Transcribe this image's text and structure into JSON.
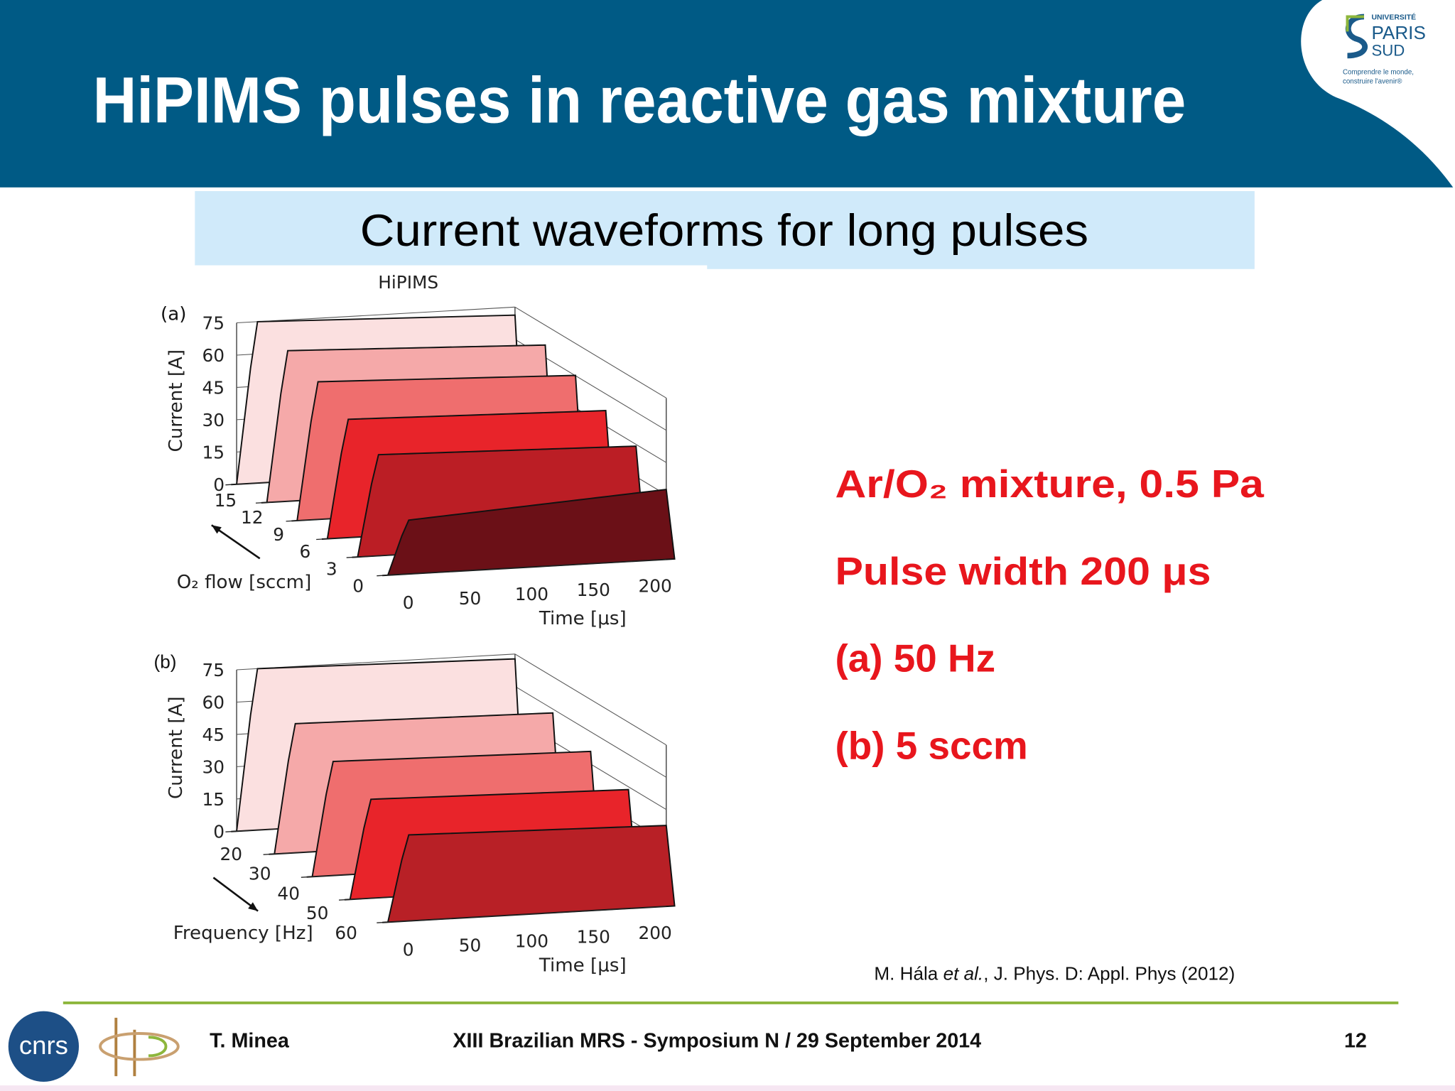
{
  "header": {
    "title": "HiPIMS pulses in reactive gas mixture",
    "subtitle": "Current waveforms for long pulses"
  },
  "logo": {
    "top": "UNIVERSITÉ",
    "name1": "PARIS",
    "name2": "SUD",
    "motto1": "Comprendre le monde,",
    "motto2": "construire l'avenir®"
  },
  "figures": [
    {
      "label": "(a)",
      "title": "HiPIMS",
      "y_label": "Current [A]",
      "yticks": [
        0,
        15,
        30,
        45,
        60,
        75
      ],
      "depth_label": "O₂ flow [sccm]",
      "depth_ticks": [
        15,
        12,
        9,
        6,
        3,
        0
      ],
      "x_label": "Time [μs]",
      "xticks": [
        0,
        50,
        100,
        150,
        200
      ]
    },
    {
      "label": "(b)",
      "y_label": "Current [A]",
      "yticks": [
        0,
        15,
        30,
        45,
        60,
        75
      ],
      "depth_label": "Frequency [Hz]",
      "depth_ticks": [
        20,
        30,
        40,
        50,
        60
      ],
      "x_label": "Time [μs]",
      "xticks": [
        0,
        50,
        100,
        150,
        200
      ]
    }
  ],
  "notes": [
    "Ar/O₂ mixture, 0.5 Pa",
    "Pulse width 200 μs",
    "(a) 50 Hz",
    "(b) 5 sccm"
  ],
  "citation": {
    "authors": "M. Hála ",
    "etal": "et al.",
    "rest": ", J. Phys. D: Appl. Phys (2012)"
  },
  "footer": {
    "author": "T. Minea",
    "event": "XIII Brazilian MRS - Symposium N / 29 September 2014",
    "page": "12",
    "cnrs": "cnrs"
  }
}
